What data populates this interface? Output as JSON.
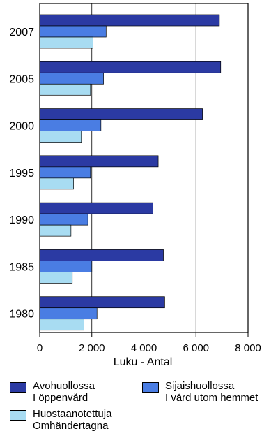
{
  "chart_data": {
    "type": "bar",
    "orientation": "horizontal",
    "categories": [
      "2007",
      "2005",
      "2000",
      "1995",
      "1990",
      "1985",
      "1980"
    ],
    "series": [
      {
        "key": "avo",
        "name_lines": [
          "Avohuollossa",
          "I öppenvård"
        ],
        "color": "#2b3aa3",
        "values": [
          6900,
          6950,
          6250,
          4550,
          4350,
          4750,
          4800
        ]
      },
      {
        "key": "sij",
        "name_lines": [
          "Sijaishuollossa",
          "I vård utom hemmet"
        ],
        "color": "#4a7de3",
        "values": [
          2550,
          2450,
          2350,
          1950,
          1850,
          2000,
          2200
        ]
      },
      {
        "key": "huo",
        "name_lines": [
          "Huostaanotettuja",
          "Omhändertagna"
        ],
        "color": "#a8dcf2",
        "values": [
          2050,
          1950,
          1600,
          1300,
          1200,
          1250,
          1700
        ]
      }
    ],
    "xlabel": "Luku - Antal",
    "xlim": [
      0,
      8000
    ],
    "xticks": [
      0,
      2000,
      4000,
      6000,
      8000
    ],
    "xtick_labels": [
      "0",
      "2 000",
      "4 000",
      "6 000",
      "8 000"
    ],
    "grid": "vertical",
    "legend_position": "bottom"
  }
}
